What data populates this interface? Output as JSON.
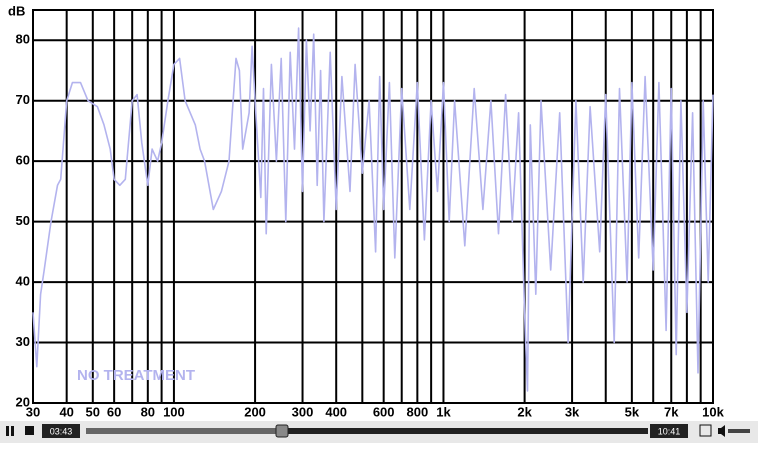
{
  "chart_data": {
    "type": "line",
    "y_label": "dB",
    "annotation": "NO TREATMENT",
    "color": "#b3b3ee",
    "log_x": true,
    "grid": true,
    "xlim": [
      30,
      10000
    ],
    "ylim": [
      20,
      85
    ],
    "yticks": [
      20,
      30,
      40,
      50,
      60,
      70,
      80
    ],
    "xticks": [
      30,
      40,
      50,
      60,
      80,
      100,
      200,
      300,
      400,
      600,
      800,
      {
        "value": 1000,
        "label": "1k"
      },
      {
        "value": 2000,
        "label": "2k"
      },
      {
        "value": 3000,
        "label": "3k"
      },
      {
        "value": 5000,
        "label": "5k"
      },
      {
        "value": 7000,
        "label": "7k"
      },
      {
        "value": 10000,
        "label": "10k"
      }
    ],
    "minor_xticks": [
      70,
      90,
      500,
      700,
      900,
      4000,
      6000,
      8000,
      9000
    ],
    "x": [
      30,
      31,
      32,
      33,
      35,
      37,
      38,
      40,
      42,
      45,
      48,
      52,
      55,
      58,
      60,
      63,
      66,
      70,
      73,
      76,
      80,
      83,
      87,
      90,
      95,
      100,
      105,
      110,
      120,
      125,
      130,
      140,
      150,
      160,
      170,
      175,
      180,
      190,
      195,
      200,
      210,
      215,
      220,
      230,
      240,
      250,
      260,
      270,
      280,
      290,
      300,
      310,
      320,
      330,
      340,
      350,
      360,
      380,
      400,
      420,
      450,
      470,
      500,
      530,
      560,
      580,
      600,
      630,
      660,
      700,
      750,
      800,
      850,
      900,
      950,
      1000,
      1050,
      1100,
      1200,
      1300,
      1400,
      1500,
      1600,
      1700,
      1800,
      1900,
      2000,
      2050,
      2100,
      2200,
      2300,
      2500,
      2700,
      2900,
      3100,
      3300,
      3500,
      3800,
      4000,
      4300,
      4500,
      4800,
      5000,
      5300,
      5600,
      6000,
      6300,
      6700,
      7000,
      7300,
      7600,
      8000,
      8400,
      8800,
      9200,
      9600,
      10000
    ],
    "values": [
      35,
      26,
      38,
      42,
      50,
      56,
      57,
      70,
      73,
      73,
      70,
      69,
      66,
      62,
      57,
      56,
      57,
      70,
      71,
      63,
      56,
      62,
      60,
      63,
      70,
      76,
      77,
      70,
      66,
      62,
      60,
      52,
      55,
      60,
      77,
      75,
      62,
      68,
      79,
      70,
      54,
      72,
      48,
      76,
      60,
      77,
      50,
      78,
      62,
      82,
      55,
      80,
      65,
      81,
      56,
      75,
      50,
      78,
      52,
      74,
      55,
      76,
      58,
      70,
      45,
      74,
      52,
      73,
      44,
      72,
      52,
      73,
      47,
      70,
      55,
      73,
      50,
      70,
      46,
      72,
      52,
      70,
      48,
      71,
      50,
      68,
      35,
      22,
      66,
      38,
      70,
      42,
      68,
      30,
      70,
      40,
      69,
      45,
      71,
      30,
      72,
      40,
      73,
      44,
      74,
      42,
      73,
      32,
      72,
      28,
      70,
      35,
      68,
      25,
      70,
      40,
      71
    ]
  },
  "player": {
    "elapsed": "03:43",
    "total": "10:41"
  }
}
